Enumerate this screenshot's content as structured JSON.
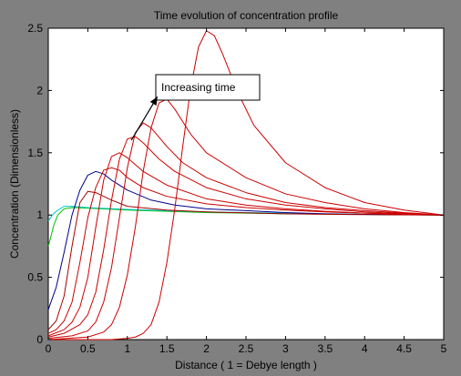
{
  "chart_data": {
    "type": "line",
    "title": "Time evolution of concentration profile",
    "xlabel": "Distance ( 1 = Debye length )",
    "ylabel": "Concentration (Dimensionless)",
    "xlim": [
      0,
      5
    ],
    "ylim": [
      0,
      2.5
    ],
    "xticks": [
      "0",
      "0.5",
      "1",
      "1.5",
      "2",
      "2.5",
      "3",
      "3.5",
      "4",
      "4.5",
      "5"
    ],
    "yticks": [
      "0",
      "0.5",
      "1",
      "1.5",
      "2",
      "2.5"
    ],
    "grid": false,
    "legend": null,
    "annotations": [
      {
        "text": "Increasing time",
        "arrow_from": [
          1.38,
          1.95
        ],
        "arrow_to": [
          1.05,
          1.6
        ]
      }
    ],
    "series": [
      {
        "color": "#00c000",
        "x": [
          0,
          0.03,
          0.07,
          0.12,
          0.2,
          0.3,
          0.5,
          1,
          1.5,
          2,
          3,
          4,
          5
        ],
        "y": [
          0.75,
          0.82,
          0.92,
          1.0,
          1.05,
          1.06,
          1.055,
          1.04,
          1.03,
          1.02,
          1.01,
          1.005,
          1.0
        ]
      },
      {
        "color": "#00c8c8",
        "x": [
          0,
          0.05,
          0.1,
          0.2,
          0.3,
          0.5,
          1,
          1.5,
          2,
          3,
          4,
          5
        ],
        "y": [
          0.95,
          1.0,
          1.03,
          1.07,
          1.07,
          1.06,
          1.045,
          1.035,
          1.025,
          1.015,
          1.005,
          1.0
        ]
      },
      {
        "color": "#00008b",
        "x": [
          0,
          0.1,
          0.2,
          0.3,
          0.4,
          0.5,
          0.6,
          0.7,
          0.8,
          1,
          1.3,
          1.6,
          2,
          2.5,
          3,
          3.5,
          4,
          4.5,
          5
        ],
        "y": [
          0.24,
          0.42,
          0.7,
          1.0,
          1.2,
          1.32,
          1.35,
          1.33,
          1.28,
          1.2,
          1.12,
          1.08,
          1.05,
          1.035,
          1.02,
          1.01,
          1.005,
          1.002,
          1.0
        ]
      },
      {
        "color": "#aa0000",
        "x": [
          0,
          0.1,
          0.2,
          0.3,
          0.4,
          0.5,
          0.6,
          0.8,
          1,
          1.5,
          2,
          3,
          4,
          5
        ],
        "y": [
          0.08,
          0.15,
          0.35,
          0.75,
          1.1,
          1.19,
          1.18,
          1.12,
          1.07,
          1.04,
          1.025,
          1.01,
          1.003,
          1.0
        ]
      },
      {
        "color": "#cc0000",
        "x": [
          0,
          0.1,
          0.2,
          0.3,
          0.4,
          0.5,
          0.6,
          0.7,
          0.8,
          0.9,
          1,
          1.2,
          1.5,
          2,
          2.5,
          3,
          3.5,
          4,
          4.5,
          5
        ],
        "y": [
          0.05,
          0.08,
          0.15,
          0.3,
          0.62,
          0.98,
          1.22,
          1.36,
          1.38,
          1.36,
          1.3,
          1.22,
          1.15,
          1.09,
          1.06,
          1.04,
          1.025,
          1.015,
          1.005,
          1.0
        ]
      },
      {
        "color": "#cc0000",
        "x": [
          0,
          0.2,
          0.3,
          0.4,
          0.5,
          0.6,
          0.7,
          0.8,
          0.9,
          1,
          1.2,
          1.5,
          2,
          2.5,
          3,
          3.5,
          4,
          4.5,
          5
        ],
        "y": [
          0.03,
          0.08,
          0.14,
          0.26,
          0.5,
          0.9,
          1.28,
          1.47,
          1.5,
          1.46,
          1.35,
          1.24,
          1.13,
          1.08,
          1.05,
          1.03,
          1.015,
          1.008,
          1.0
        ]
      },
      {
        "color": "#cc0000",
        "x": [
          0,
          0.2,
          0.4,
          0.5,
          0.6,
          0.7,
          0.8,
          0.9,
          1,
          1.1,
          1.2,
          1.4,
          1.6,
          2,
          2.5,
          3,
          3.5,
          4,
          4.5,
          5
        ],
        "y": [
          0.02,
          0.05,
          0.12,
          0.2,
          0.38,
          0.72,
          1.12,
          1.45,
          1.61,
          1.63,
          1.58,
          1.45,
          1.35,
          1.22,
          1.13,
          1.08,
          1.05,
          1.025,
          1.01,
          1.0
        ]
      },
      {
        "color": "#cc0000",
        "x": [
          0,
          0.3,
          0.5,
          0.6,
          0.7,
          0.8,
          0.9,
          1,
          1.1,
          1.2,
          1.3,
          1.5,
          1.7,
          2,
          2.5,
          3,
          3.5,
          4,
          4.5,
          5
        ],
        "y": [
          0.01,
          0.03,
          0.07,
          0.14,
          0.3,
          0.58,
          0.98,
          1.38,
          1.66,
          1.74,
          1.7,
          1.55,
          1.42,
          1.3,
          1.18,
          1.1,
          1.06,
          1.035,
          1.015,
          1.0
        ]
      },
      {
        "color": "#cc0000",
        "x": [
          0,
          0.5,
          0.7,
          0.8,
          0.9,
          1,
          1.1,
          1.2,
          1.3,
          1.4,
          1.5,
          1.6,
          1.8,
          2,
          2.5,
          3,
          3.5,
          4,
          4.5,
          5
        ],
        "y": [
          0.0,
          0.02,
          0.06,
          0.12,
          0.26,
          0.52,
          0.9,
          1.35,
          1.7,
          1.9,
          1.93,
          1.85,
          1.65,
          1.5,
          1.3,
          1.17,
          1.1,
          1.05,
          1.02,
          1.0
        ]
      },
      {
        "color": "#cc0000",
        "x": [
          0,
          0.8,
          1,
          1.1,
          1.2,
          1.3,
          1.4,
          1.5,
          1.6,
          1.7,
          1.8,
          1.9,
          2,
          2.1,
          2.2,
          2.4,
          2.6,
          3,
          3.5,
          4,
          4.5,
          5
        ],
        "y": [
          0.0,
          0.0,
          0.01,
          0.02,
          0.05,
          0.12,
          0.3,
          0.62,
          1.05,
          1.55,
          2.02,
          2.35,
          2.48,
          2.44,
          2.3,
          1.98,
          1.72,
          1.42,
          1.22,
          1.1,
          1.04,
          1.0
        ]
      }
    ]
  }
}
